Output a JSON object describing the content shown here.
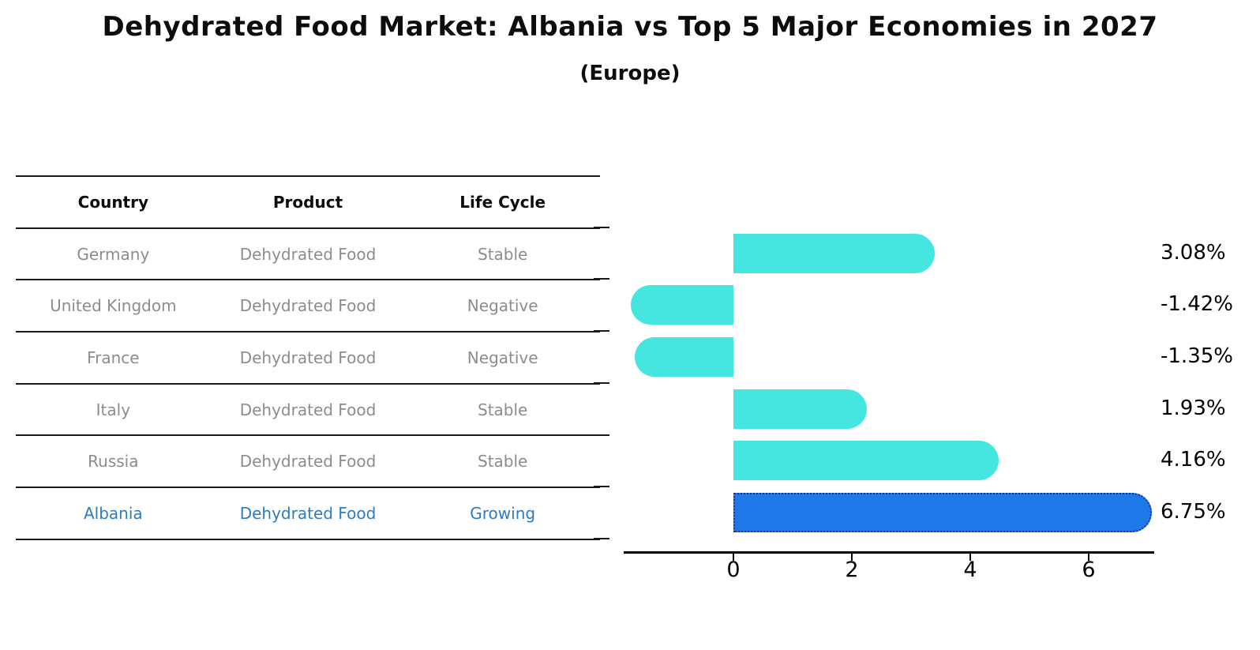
{
  "title": "Dehydrated Food Market: Albania vs Top 5 Major Economies in 2027",
  "subtitle": "(Europe)",
  "table": {
    "columns": [
      "Country",
      "Product",
      "Life Cycle"
    ]
  },
  "chart_data": {
    "type": "bar",
    "orientation": "horizontal",
    "categories": [
      "Germany",
      "United Kingdom",
      "France",
      "Italy",
      "Russia",
      "Albania"
    ],
    "values": [
      3.08,
      -1.42,
      -1.35,
      1.93,
      4.16,
      6.75
    ],
    "rows": [
      {
        "country": "Germany",
        "product": "Dehydrated Food",
        "life_cycle": "Stable",
        "value": 3.08,
        "value_label": "3.08%",
        "highlight": false
      },
      {
        "country": "United Kingdom",
        "product": "Dehydrated Food",
        "life_cycle": "Negative",
        "value": -1.42,
        "value_label": "-1.42%",
        "highlight": false
      },
      {
        "country": "France",
        "product": "Dehydrated Food",
        "life_cycle": "Negative",
        "value": -1.35,
        "value_label": "-1.35%",
        "highlight": false
      },
      {
        "country": "Italy",
        "product": "Dehydrated Food",
        "life_cycle": "Stable",
        "value": 1.93,
        "value_label": "1.93%",
        "highlight": false
      },
      {
        "country": "Russia",
        "product": "Dehydrated Food",
        "life_cycle": "Stable",
        "value": 4.16,
        "value_label": "4.16%",
        "highlight": false
      },
      {
        "country": "Albania",
        "product": "Dehydrated Food",
        "life_cycle": "Growing",
        "value": 6.75,
        "value_label": "6.75%",
        "highlight": true
      }
    ],
    "xticks": [
      0,
      2,
      4,
      6
    ],
    "xlim": [
      -1.85,
      7.11
    ],
    "grid": false,
    "legend": "none",
    "colors": {
      "bar": "#45e6e0",
      "highlight_bar": "#1f79e8",
      "highlight_border": "#15379e",
      "highlight_text": "#2e7bbf",
      "row_text": "#8c8c8c",
      "axis": "#000000"
    }
  }
}
